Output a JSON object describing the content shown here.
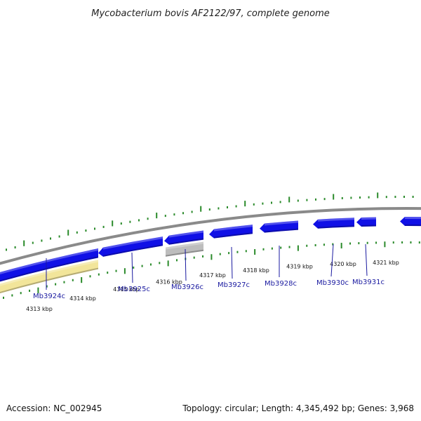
{
  "title": "Mycobacterium bovis AF2122/97, complete genome",
  "footer": {
    "accession": "Accession: NC_002945",
    "summary": "Topology: circular; Length: 4,345,492 bp; Genes: 3,968"
  },
  "colors": {
    "backbone": "#8a8a8a",
    "gene_forward": "#1010e6",
    "gene_grey": "#bdbdbd",
    "gc_skew": "#f2e59a",
    "tick": "#2a8a2a",
    "gene_label": "#1a1aa0"
  },
  "scale": {
    "labels": [
      "4313 kbp",
      "4314 kbp",
      "4315 kbp",
      "4316 kbp",
      "4317 kbp",
      "4318 kbp",
      "4319 kbp",
      "4320 kbp",
      "4321 kbp"
    ]
  },
  "genes": [
    {
      "name": "Mb3924c"
    },
    {
      "name": "Mb3925c"
    },
    {
      "name": "Mb3926c"
    },
    {
      "name": "Mb3927c"
    },
    {
      "name": "Mb3928c"
    },
    {
      "name": "Mb3930c"
    },
    {
      "name": "Mb3931c"
    }
  ]
}
